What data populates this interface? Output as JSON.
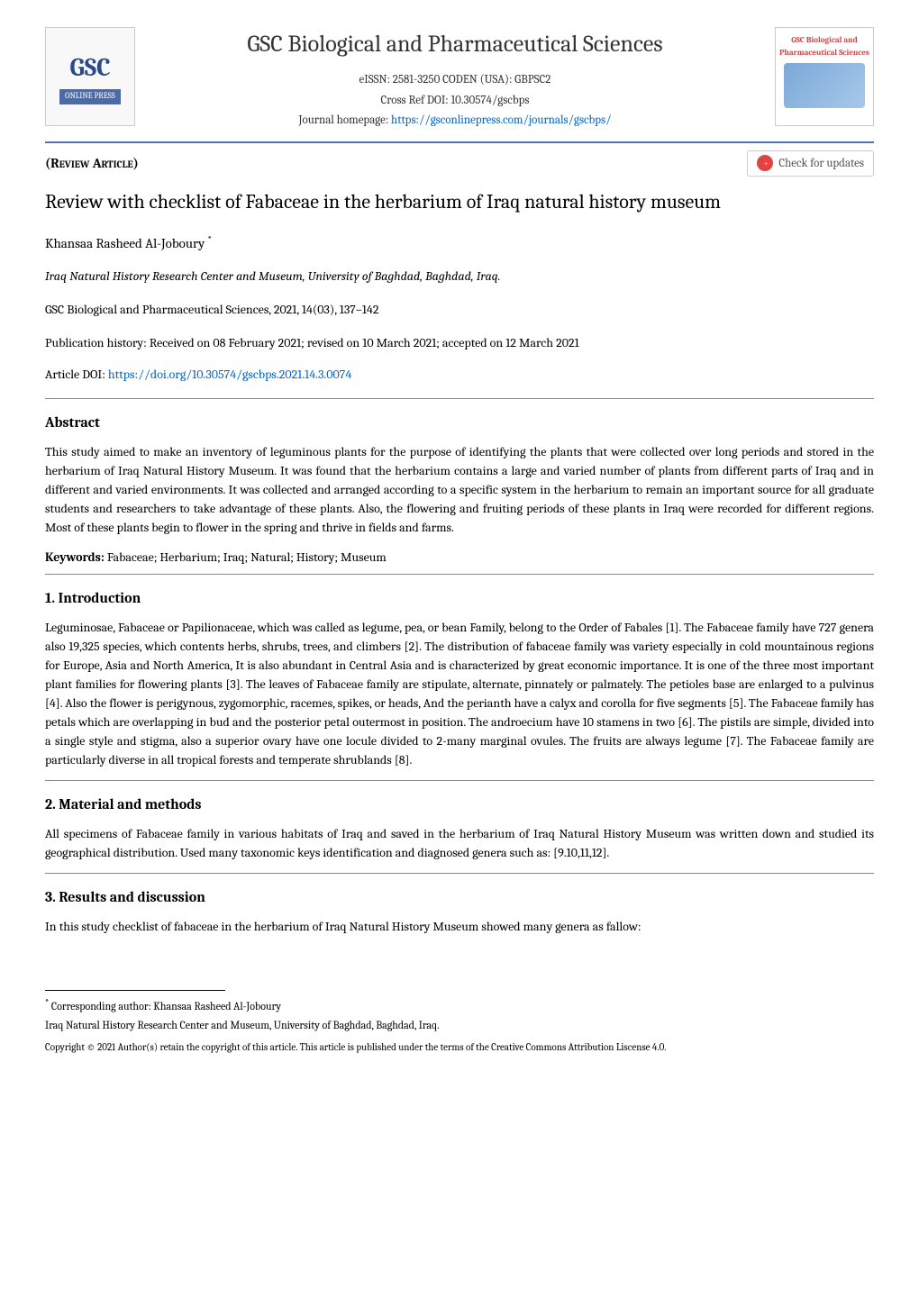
{
  "header": {
    "journal_title": "GSC Biological and Pharmaceutical Sciences",
    "eissn_line": "eISSN: 2581-3250  CODEN (USA): GBPSC2",
    "crossref_line": "Cross Ref DOI: 10.30574/gscbps",
    "homepage_label": "Journal homepage: ",
    "homepage_url": "https://gsconlinepress.com/journals/gscbps/",
    "logo_left": {
      "gsc": "GSC",
      "press": "ONLINE PRESS"
    },
    "logo_right": {
      "top": "eISSN: 2581-3250\nCODEN (USA): GBPSC2",
      "mid": "GSC Biological and Pharmaceutical Sciences"
    },
    "review_tag": "(Review Article)",
    "check_updates": "Check for updates"
  },
  "article": {
    "title": "Review with checklist of Fabaceae in the herbarium of Iraq natural history museum",
    "author": "Khansaa Rasheed Al-Joboury ",
    "author_asterisk": "*",
    "affiliation": "Iraq Natural History Research Center and Museum, University of Baghdad, Baghdad, Iraq.",
    "citation": "GSC Biological and Pharmaceutical Sciences, 2021, 14(03), 137–142",
    "pub_history": "Publication history: Received on 08 February 2021; revised on 10 March 2021; accepted on 12 March 2021",
    "doi_label": "Article DOI: ",
    "doi_url": "https://doi.org/10.30574/gscbps.2021.14.3.0074"
  },
  "abstract": {
    "heading": "Abstract",
    "text": "This study aimed to make an inventory of leguminous plants for the purpose of identifying the plants that were collected over long periods and stored in the herbarium of Iraq Natural History Museum. It was found that the herbarium contains a large and varied number of plants from different parts of Iraq and in different and varied environments. It was collected and arranged according to a specific system in the herbarium to remain an important source for all graduate students and researchers to take advantage of these plants. Also, the flowering and fruiting periods of these plants in Iraq were recorded for different regions. Most of these plants begin to flower in the spring and thrive in fields and farms.",
    "keywords_label": "Keywords: ",
    "keywords": "Fabaceae; Herbarium; Iraq; Natural; History; Museum"
  },
  "sections": {
    "intro": {
      "heading": "1. Introduction",
      "text": "Leguminosae, Fabaceae or Papilionaceae, which was called as legume, pea, or bean Family, belong to the Order of Fabales [1]. The Fabaceae family have 727 genera also 19,325 species, which contents herbs, shrubs, trees, and climbers [2]. The distribution of fabaceae family was variety especially in cold mountainous regions for Europe, Asia and North America, It is also abundant in Central Asia and is characterized by great economic importance. It is one of the three most important plant families for flowering plants [3]. The leaves of Fabaceae family are stipulate, alternate, pinnately or palmately. The petioles base are enlarged to a pulvinus [4]. Also the flower is perigynous, zygomorphic, racemes, spikes, or heads, And the perianth have a calyx and corolla for five segments [5]. The Fabaceae family has petals which are overlapping in bud and the posterior petal outermost in position. The androecium have 10 stamens in two [6]. The pistils are simple, divided into a single style and stigma, also a superior ovary have one locule divided to 2-many marginal ovules. The fruits are always legume [7]. The Fabaceae family are particularly diverse in all tropical forests and temperate shrublands [8]."
    },
    "methods": {
      "heading": "2. Material and methods",
      "text": "All specimens of Fabaceae family in various habitats of Iraq and saved in the herbarium of Iraq Natural History Museum was written down and studied its geographical distribution. Used many taxonomic keys identification and diagnosed genera such as: [9.10,11,12]."
    },
    "results": {
      "heading": "3. Results and discussion",
      "text": "In this study checklist of fabaceae in the herbarium of Iraq Natural History Museum showed many genera as fallow:"
    }
  },
  "footer": {
    "corresponding_label": " Corresponding author: ",
    "corresponding_author": "Khansaa Rasheed Al-Joboury",
    "affiliation_footer": "Iraq Natural History Research Center and Museum, University of Baghdad, Baghdad, Iraq.",
    "copyright": "Copyright © 2021 Author(s) retain the copyright of this article. This article is published under the terms of the Creative Commons Attribution Liscense 4.0."
  },
  "colors": {
    "link": "#0066cc",
    "header_border": "#5472b8",
    "text": "#000000",
    "background": "#ffffff"
  }
}
